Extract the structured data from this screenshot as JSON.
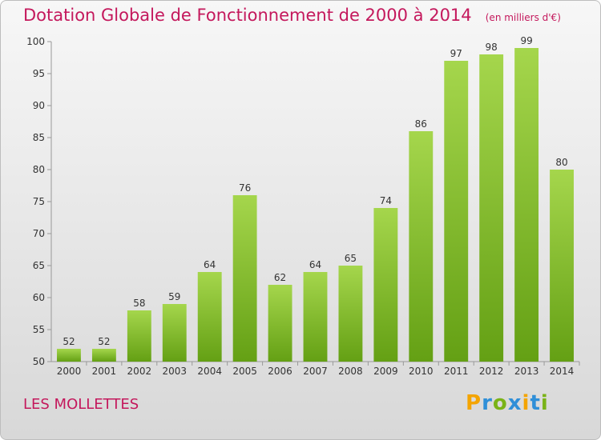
{
  "header": {
    "title": "Dotation Globale de Fonctionnement de 2000 à 2014",
    "unit": "(en milliers d'€)"
  },
  "footer": {
    "commune": "LES MOLLETTES",
    "logo_text": "Proxiti"
  },
  "colors": {
    "title": "#c4185c",
    "bar_light": "#a5d64c",
    "bar_dark": "#64a014"
  },
  "chart_data": {
    "type": "bar",
    "title": "Dotation Globale de Fonctionnement de 2000 à 2014",
    "subtitle": "(en milliers d'€)",
    "categories": [
      "2000",
      "2001",
      "2002",
      "2003",
      "2004",
      "2005",
      "2006",
      "2007",
      "2008",
      "2009",
      "2010",
      "2011",
      "2012",
      "2013",
      "2014"
    ],
    "values": [
      52,
      52,
      58,
      59,
      64,
      76,
      62,
      64,
      65,
      74,
      86,
      97,
      98,
      99,
      80
    ],
    "ylim": [
      50,
      100
    ],
    "yticks": [
      50,
      55,
      60,
      65,
      70,
      75,
      80,
      85,
      90,
      95,
      100
    ],
    "grid": false,
    "legend": "none"
  }
}
